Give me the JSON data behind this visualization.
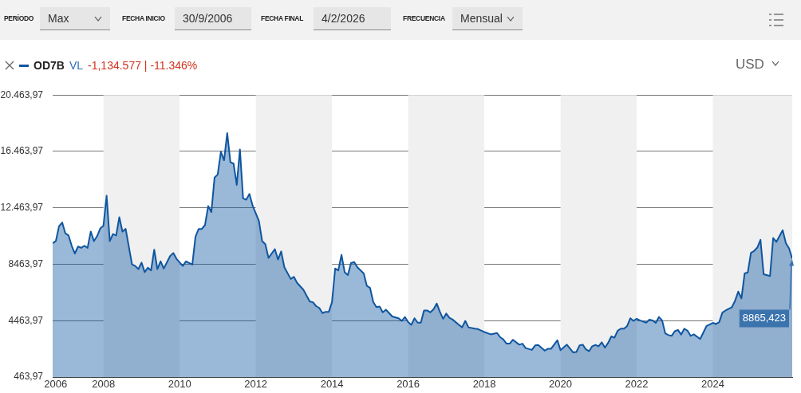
{
  "chart_data": {
    "type": "area",
    "annotations": [
      "PERÍODO",
      "Max",
      "FECHA INICIO",
      "30/9/2006",
      "FECHA FINAL",
      "4/2/2026",
      "FRECUENCIA",
      "Mensual",
      "VL",
      "-1,134.577 | -11.346%",
      "USD",
      {
        "text": "8865,423",
        "x": "2026-02",
        "y": 8865.423
      }
    ],
    "x": [
      "2006-09",
      "2006-10",
      "2006-11",
      "2006-12",
      "2007-01",
      "2007-02",
      "2007-03",
      "2007-04",
      "2007-05",
      "2007-06",
      "2007-07",
      "2007-08",
      "2007-09",
      "2007-10",
      "2007-11",
      "2007-12",
      "2008-01",
      "2008-02",
      "2008-03",
      "2008-04",
      "2008-05",
      "2008-06",
      "2008-07",
      "2008-08",
      "2008-10",
      "2008-11",
      "2008-12",
      "2009-01",
      "2009-02",
      "2009-03",
      "2009-04",
      "2009-05",
      "2009-06",
      "2009-07",
      "2009-08",
      "2009-10",
      "2009-11",
      "2009-12",
      "2010-02",
      "2010-03",
      "2010-05",
      "2010-06",
      "2010-07",
      "2010-08",
      "2010-09",
      "2010-10",
      "2010-11",
      "2010-12",
      "2011-01",
      "2011-02",
      "2011-03",
      "2011-04",
      "2011-05",
      "2011-06",
      "2011-07",
      "2011-08",
      "2011-09",
      "2011-10",
      "2011-11",
      "2011-12",
      "2012-02",
      "2012-03",
      "2012-04",
      "2012-05",
      "2012-07",
      "2012-08",
      "2012-09",
      "2012-10",
      "2012-12",
      "2013-01",
      "2013-02",
      "2013-04",
      "2013-06",
      "2013-07",
      "2013-08",
      "2013-09",
      "2013-10",
      "2013-11",
      "2013-12",
      "2014-01",
      "2014-02",
      "2014-03",
      "2014-04",
      "2014-05",
      "2014-06",
      "2014-07",
      "2014-08",
      "2014-09",
      "2014-11",
      "2014-12",
      "2015-01",
      "2015-02",
      "2015-03",
      "2015-04",
      "2015-05",
      "2015-06",
      "2015-08",
      "2015-10",
      "2015-11",
      "2015-12",
      "2016-01",
      "2016-02",
      "2016-03",
      "2016-04",
      "2016-05",
      "2016-06",
      "2016-07",
      "2016-08",
      "2016-09",
      "2016-10",
      "2016-11",
      "2016-12",
      "2017-01",
      "2017-02",
      "2017-03",
      "2017-05",
      "2017-06",
      "2017-07",
      "2017-08",
      "2017-10",
      "2017-11",
      "2018-01",
      "2018-03",
      "2018-05",
      "2018-06",
      "2018-07",
      "2018-08",
      "2018-09",
      "2018-10",
      "2018-12",
      "2019-01",
      "2019-02",
      "2019-04",
      "2019-05",
      "2019-06",
      "2019-08",
      "2019-09",
      "2019-10",
      "2019-12",
      "2020-01",
      "2020-03",
      "2020-05",
      "2020-06",
      "2020-07",
      "2020-08",
      "2020-09",
      "2020-10",
      "2020-11",
      "2020-12",
      "2021-01",
      "2021-02",
      "2021-03",
      "2021-04",
      "2021-05",
      "2021-06",
      "2021-07",
      "2021-08",
      "2021-09",
      "2021-10",
      "2021-11",
      "2021-12",
      "2022-01",
      "2022-02",
      "2022-04",
      "2022-05",
      "2022-06",
      "2022-07",
      "2022-08",
      "2022-09",
      "2022-10",
      "2022-11",
      "2022-12",
      "2023-01",
      "2023-02",
      "2023-03",
      "2023-04",
      "2023-05",
      "2023-06",
      "2023-07",
      "2023-09",
      "2023-11",
      "2024-01",
      "2024-02",
      "2024-03",
      "2024-04",
      "2024-05",
      "2024-07",
      "2024-08",
      "2024-09",
      "2024-10",
      "2024-11",
      "2024-12",
      "2025-01",
      "2025-02",
      "2025-03",
      "2025-04",
      "2025-05",
      "2025-07",
      "2025-08",
      "2025-09",
      "2025-11",
      "2025-12",
      "2026-01",
      "2026-02"
    ],
    "series": [
      {
        "name": "OD7B",
        "color": "#0f56a0",
        "values": [
          9958,
          10106,
          11153,
          11430,
          10658,
          10509,
          9776,
          9225,
          9721,
          9627,
          9776,
          9627,
          10784,
          10106,
          10454,
          11005,
          11192,
          13319,
          10106,
          10602,
          10509,
          11798,
          10784,
          10971,
          8454,
          8343,
          8123,
          8580,
          7903,
          8216,
          8029,
          9500,
          8123,
          8674,
          8161,
          9043,
          9263,
          8856,
          8343,
          8674,
          8437,
          10421,
          10971,
          10971,
          11247,
          12586,
          12162,
          14608,
          14828,
          16443,
          15837,
          17765,
          15710,
          15600,
          14090,
          16608,
          13137,
          13043,
          13451,
          12624,
          11522,
          10106,
          9886,
          8911,
          9539,
          8800,
          9374,
          8250,
          7423,
          7572,
          7148,
          6652,
          5825,
          5770,
          5495,
          5368,
          4999,
          5092,
          5092,
          5770,
          8161,
          8029,
          9131,
          7903,
          7699,
          8547,
          8619,
          8250,
          7809,
          6927,
          6784,
          5792,
          5423,
          5461,
          5054,
          5241,
          4762,
          4635,
          4448,
          4723,
          4360,
          4172,
          4635,
          4321,
          4321,
          5186,
          5186,
          5054,
          5274,
          5682,
          5092,
          4596,
          4966,
          4668,
          4541,
          4172,
          3990,
          4448,
          3990,
          3897,
          3864,
          3660,
          3494,
          3588,
          3290,
          3125,
          2833,
          2833,
          3109,
          2762,
          2833,
          2519,
          2393,
          2706,
          2739,
          2337,
          2464,
          2464,
          3070,
          2376,
          2762,
          2211,
          2244,
          2706,
          2762,
          2431,
          2299,
          2651,
          2739,
          2651,
          2927,
          2558,
          2889,
          3346,
          3258,
          3753,
          3897,
          3897,
          4084,
          4635,
          4448,
          4596,
          4486,
          4321,
          4541,
          4486,
          4304,
          4723,
          4486,
          3566,
          3439,
          3384,
          3715,
          3808,
          3478,
          3897,
          3753,
          3384,
          3494,
          3164,
          4084,
          4304,
          4227,
          4360,
          5037,
          5186,
          5423,
          5880,
          6525,
          6046,
          7809,
          7886,
          9280,
          9407,
          9649,
          10200,
          7754,
          7627,
          10327,
          10051,
          10878,
          9958,
          9594,
          8865.423
        ]
      }
    ],
    "xlim": [
      "2006-09",
      "2026-02"
    ],
    "xticks": [
      {
        "value": "2006-09-30",
        "label": "2006"
      },
      {
        "value": "2008-01",
        "label": "2008"
      },
      {
        "value": "2010-01",
        "label": "2010"
      },
      {
        "value": "2012-01",
        "label": "2012"
      },
      {
        "value": "2014-01",
        "label": "2014"
      },
      {
        "value": "2016-01",
        "label": "2016"
      },
      {
        "value": "2018-01",
        "label": "2018"
      },
      {
        "value": "2020-01",
        "label": "2020"
      },
      {
        "value": "2022-01",
        "label": "2022"
      },
      {
        "value": "2024-01",
        "label": "2024"
      }
    ],
    "ylim": [
      463.97,
      20463.97
    ],
    "yticks": [
      {
        "value": 463.97,
        "label": "463,97"
      },
      {
        "value": 4463.97,
        "label": "4463,97"
      },
      {
        "value": 8463.97,
        "label": "8463,97"
      },
      {
        "value": 12463.97,
        "label": "12.463,97"
      },
      {
        "value": 16463.97,
        "label": "16.463,97"
      },
      {
        "value": 20463.97,
        "label": "20.463,97"
      }
    ],
    "bands": [
      {
        "axis": "x",
        "from": "2008-01",
        "to": "2010-01",
        "color": "#f0f0f0"
      },
      {
        "axis": "x",
        "from": "2012-01",
        "to": "2014-01",
        "color": "#f0f0f0"
      },
      {
        "axis": "x",
        "from": "2016-01",
        "to": "2018-01",
        "color": "#f0f0f0"
      },
      {
        "axis": "x",
        "from": "2020-01",
        "to": "2022-01",
        "color": "#f0f0f0"
      },
      {
        "axis": "x",
        "from": "2024-01",
        "to": "2026-02",
        "color": "#f0f0f0"
      }
    ],
    "grid": "y",
    "legend": "top left",
    "marker": "none",
    "line_style": "solid"
  }
}
